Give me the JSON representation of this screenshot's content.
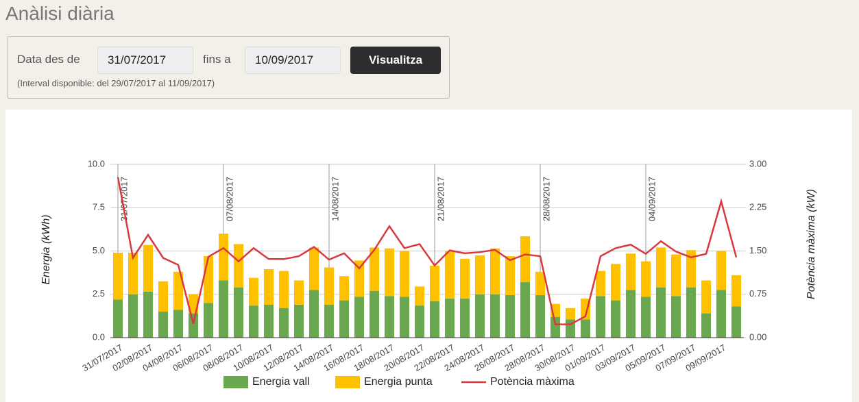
{
  "header": {
    "title": "Anàlisi diària"
  },
  "form": {
    "from_label": "Data des de",
    "from_value": "31/07/2017",
    "to_label": "fins a",
    "to_value": "10/09/2017",
    "button": "Visualitza",
    "note": "(Interval disponible: del 29/07/2017 al 11/09/2017)"
  },
  "chart_data": {
    "type": "bar",
    "stacked": true,
    "y_label": "Energia (kWh)",
    "y2_label": "Potència màxima (kW)",
    "categories": [
      "31/07/2017",
      null,
      "02/08/2017",
      null,
      "04/08/2017",
      null,
      "06/08/2017",
      null,
      "08/08/2017",
      null,
      "10/08/2017",
      null,
      "12/08/2017",
      null,
      "14/08/2017",
      null,
      "16/08/2017",
      null,
      "18/08/2017",
      null,
      "20/08/2017",
      null,
      "22/08/2017",
      null,
      "24/08/2017",
      null,
      "26/08/2017",
      null,
      "28/08/2017",
      null,
      "30/08/2017",
      null,
      "01/09/2017",
      null,
      "03/09/2017",
      null,
      "05/09/2017",
      null,
      "07/09/2017",
      null,
      "09/09/2017",
      null
    ],
    "week_markers": [
      "31/07/2017",
      "07/08/2017",
      "14/08/2017",
      "21/08/2017",
      "28/08/2017",
      "04/09/2017"
    ],
    "series": [
      {
        "name": "Energia vall",
        "color": "#6aa84f",
        "values": [
          2.2,
          2.5,
          2.65,
          1.5,
          1.6,
          1.4,
          2.0,
          3.3,
          2.9,
          1.85,
          1.9,
          1.7,
          1.9,
          2.75,
          1.9,
          2.15,
          2.35,
          2.7,
          2.4,
          2.35,
          1.85,
          2.1,
          2.25,
          2.25,
          2.5,
          2.5,
          2.45,
          3.2,
          2.45,
          1.2,
          1.05,
          1.05,
          2.4,
          2.15,
          2.75,
          2.35,
          2.9,
          2.4,
          2.9,
          1.4,
          2.75,
          1.8
        ]
      },
      {
        "name": "Energia punta",
        "color": "#ffc000",
        "values": [
          2.7,
          2.4,
          2.7,
          1.75,
          2.2,
          1.1,
          2.7,
          2.7,
          2.5,
          1.6,
          2.05,
          2.15,
          1.4,
          2.45,
          2.15,
          1.4,
          2.1,
          2.5,
          2.75,
          2.65,
          1.1,
          2.05,
          2.75,
          2.3,
          2.25,
          2.65,
          2.25,
          2.65,
          1.35,
          0.75,
          0.65,
          1.2,
          1.45,
          2.1,
          2.1,
          2.05,
          2.3,
          2.4,
          2.15,
          1.9,
          2.25,
          1.8
        ]
      },
      {
        "name": "Potència màxima",
        "color": "#d9393e",
        "type": "line",
        "axis": "y2",
        "values": [
          2.78,
          1.38,
          1.78,
          1.38,
          1.26,
          0.24,
          1.4,
          1.55,
          1.32,
          1.55,
          1.36,
          1.36,
          1.41,
          1.57,
          1.35,
          1.46,
          1.2,
          1.52,
          1.93,
          1.55,
          1.62,
          1.25,
          1.51,
          1.46,
          1.48,
          1.52,
          1.34,
          1.44,
          1.41,
          0.23,
          0.23,
          0.37,
          1.41,
          1.55,
          1.61,
          1.45,
          1.67,
          1.49,
          1.39,
          1.45,
          2.36,
          1.39
        ]
      }
    ],
    "ylim": [
      0,
      10
    ],
    "yticks": [
      {
        "value": 0,
        "label": "0.0"
      },
      2.5,
      {
        "value": 5,
        "label": "5.0"
      },
      7.5,
      {
        "value": 10,
        "label": "10.0"
      }
    ],
    "y2lim": [
      0,
      3
    ],
    "y2ticks": [
      {
        "value": 0,
        "label": "0.00"
      },
      {
        "value": 0.75,
        "label": "0.75"
      },
      {
        "value": 1.5,
        "label": "1.50"
      },
      {
        "value": 2.25,
        "label": "2.25"
      },
      {
        "value": 3,
        "label": "3.00"
      }
    ],
    "grid": true,
    "legend": "bottom"
  }
}
